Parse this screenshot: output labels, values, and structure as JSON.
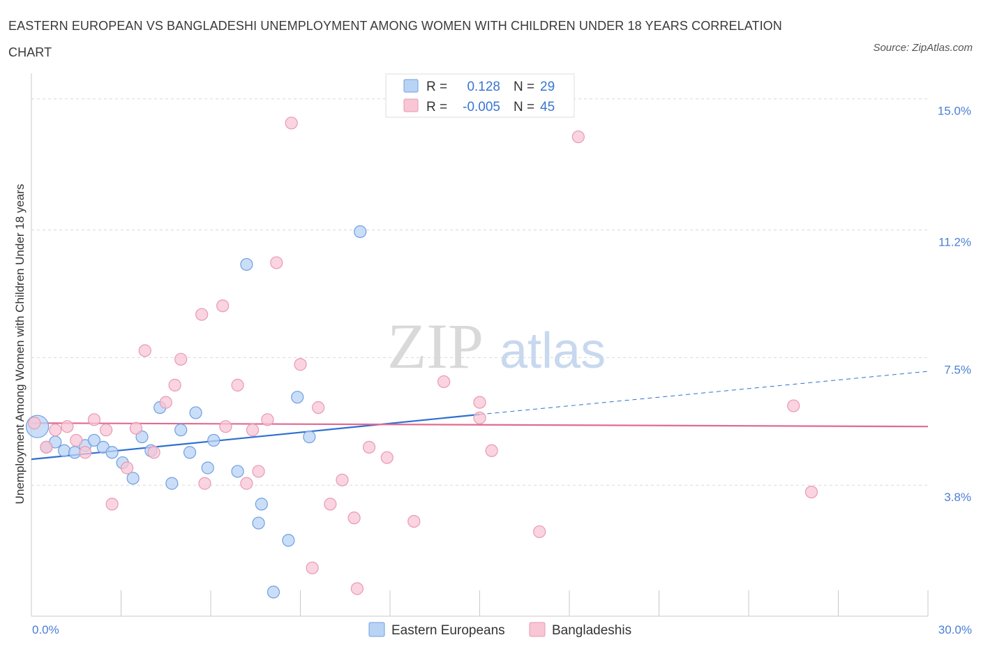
{
  "title": "EASTERN EUROPEAN VS BANGLADESHI UNEMPLOYMENT AMONG WOMEN WITH CHILDREN UNDER 18 YEARS CORRELATION CHART",
  "source": "Source: ZipAtlas.com",
  "watermark": {
    "zip": "ZIP",
    "atlas": "atlas"
  },
  "colors": {
    "blue_fill": "#b9d3f5",
    "blue_stroke": "#6e9fe0",
    "blue_line": "#2f6fd0",
    "pink_fill": "#f8c6d5",
    "pink_stroke": "#e89ab2",
    "pink_line": "#e06a93",
    "tick_text": "#4a7fd4",
    "grid": "#d9d9d9"
  },
  "legend": {
    "rows": [
      {
        "r_label": "R =",
        "r_value": "0.128",
        "n_label": "N =",
        "n_value": "29"
      },
      {
        "r_label": "R =",
        "r_value": "-0.005",
        "n_label": "N =",
        "n_value": "45"
      }
    ]
  },
  "chart_data": {
    "type": "scatter",
    "title": "EASTERN EUROPEAN VS BANGLADESHI UNEMPLOYMENT AMONG WOMEN WITH CHILDREN UNDER 18 YEARS CORRELATION CHART",
    "xlabel": "",
    "ylabel": "Unemployment Among Women with Children Under 18 years",
    "xlim": [
      0,
      30
    ],
    "ylim": [
      0,
      15
    ],
    "x_tick_labels": [
      "0.0%",
      "30.0%"
    ],
    "y_ticks": [
      3.8,
      7.5,
      11.2,
      15.0
    ],
    "y_tick_labels": [
      "3.8%",
      "7.5%",
      "11.2%",
      "15.0%"
    ],
    "grid": true,
    "legend_position": "bottom",
    "series": [
      {
        "name": "Eastern Europeans",
        "color": "#6e9fe0",
        "trend": {
          "x": [
            0,
            15
          ],
          "y": [
            4.55,
            5.85
          ],
          "dashed_to": [
            30,
            7.1
          ]
        },
        "points": [
          {
            "x": 0.2,
            "y": 5.5,
            "big": true
          },
          {
            "x": 0.5,
            "y": 4.9
          },
          {
            "x": 0.8,
            "y": 5.05
          },
          {
            "x": 1.1,
            "y": 4.8
          },
          {
            "x": 1.45,
            "y": 4.75
          },
          {
            "x": 1.8,
            "y": 4.95
          },
          {
            "x": 2.1,
            "y": 5.1
          },
          {
            "x": 2.4,
            "y": 4.9
          },
          {
            "x": 2.7,
            "y": 4.75
          },
          {
            "x": 3.05,
            "y": 4.45
          },
          {
            "x": 3.4,
            "y": 4.0
          },
          {
            "x": 3.7,
            "y": 5.2
          },
          {
            "x": 4.0,
            "y": 4.8
          },
          {
            "x": 4.3,
            "y": 6.05
          },
          {
            "x": 4.7,
            "y": 3.85
          },
          {
            "x": 5.0,
            "y": 5.4
          },
          {
            "x": 5.3,
            "y": 4.75
          },
          {
            "x": 5.5,
            "y": 5.9
          },
          {
            "x": 6.1,
            "y": 5.1
          },
          {
            "x": 5.9,
            "y": 4.3
          },
          {
            "x": 6.9,
            "y": 4.2
          },
          {
            "x": 7.2,
            "y": 10.2
          },
          {
            "x": 7.7,
            "y": 3.25
          },
          {
            "x": 7.6,
            "y": 2.7
          },
          {
            "x": 8.1,
            "y": 0.7
          },
          {
            "x": 8.6,
            "y": 2.2
          },
          {
            "x": 8.9,
            "y": 6.35
          },
          {
            "x": 9.3,
            "y": 5.2
          },
          {
            "x": 11.0,
            "y": 11.15
          }
        ]
      },
      {
        "name": "Bangladeshis",
        "color": "#e89ab2",
        "trend": {
          "x": [
            0,
            30
          ],
          "y": [
            5.6,
            5.5
          ]
        },
        "points": [
          {
            "x": 0.1,
            "y": 5.6
          },
          {
            "x": 0.5,
            "y": 4.9
          },
          {
            "x": 0.8,
            "y": 5.4
          },
          {
            "x": 1.2,
            "y": 5.5
          },
          {
            "x": 1.5,
            "y": 5.1
          },
          {
            "x": 1.8,
            "y": 4.75
          },
          {
            "x": 2.1,
            "y": 5.7
          },
          {
            "x": 2.5,
            "y": 5.4
          },
          {
            "x": 2.7,
            "y": 3.25
          },
          {
            "x": 3.2,
            "y": 4.3
          },
          {
            "x": 3.5,
            "y": 5.45
          },
          {
            "x": 3.8,
            "y": 7.7
          },
          {
            "x": 4.1,
            "y": 4.75
          },
          {
            "x": 4.5,
            "y": 6.2
          },
          {
            "x": 4.8,
            "y": 6.7
          },
          {
            "x": 5.0,
            "y": 7.45
          },
          {
            "x": 5.7,
            "y": 8.75
          },
          {
            "x": 5.8,
            "y": 3.85
          },
          {
            "x": 6.4,
            "y": 9.0
          },
          {
            "x": 6.5,
            "y": 5.5
          },
          {
            "x": 6.9,
            "y": 6.7
          },
          {
            "x": 7.2,
            "y": 3.85
          },
          {
            "x": 7.4,
            "y": 5.4
          },
          {
            "x": 7.6,
            "y": 4.2
          },
          {
            "x": 7.9,
            "y": 5.7
          },
          {
            "x": 8.2,
            "y": 10.25
          },
          {
            "x": 8.7,
            "y": 14.3
          },
          {
            "x": 9.0,
            "y": 7.3
          },
          {
            "x": 9.4,
            "y": 1.4
          },
          {
            "x": 9.6,
            "y": 6.05
          },
          {
            "x": 10.0,
            "y": 3.25
          },
          {
            "x": 10.4,
            "y": 3.95
          },
          {
            "x": 10.8,
            "y": 2.85
          },
          {
            "x": 10.9,
            "y": 0.8
          },
          {
            "x": 11.3,
            "y": 4.9
          },
          {
            "x": 11.9,
            "y": 4.6
          },
          {
            "x": 12.8,
            "y": 2.75
          },
          {
            "x": 13.8,
            "y": 6.8
          },
          {
            "x": 15.0,
            "y": 6.2
          },
          {
            "x": 15.0,
            "y": 5.75
          },
          {
            "x": 15.4,
            "y": 4.8
          },
          {
            "x": 17.0,
            "y": 2.45
          },
          {
            "x": 18.3,
            "y": 13.9
          },
          {
            "x": 25.5,
            "y": 6.1
          },
          {
            "x": 26.1,
            "y": 3.6
          }
        ]
      }
    ]
  }
}
